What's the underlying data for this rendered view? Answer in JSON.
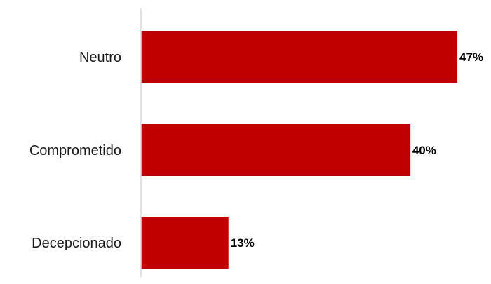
{
  "chart_data": {
    "type": "bar",
    "orientation": "horizontal",
    "categories": [
      "Neutro",
      "Comprometido",
      "Decepcionado"
    ],
    "values": [
      47,
      40,
      13
    ],
    "value_labels": [
      "47%",
      "40%",
      "13%"
    ],
    "title": "",
    "xlabel": "",
    "ylabel": "",
    "xlim": [
      0,
      47
    ],
    "grid": false,
    "legend": "none",
    "bar_color": "#C00000",
    "axis_color": "#D9D9D9"
  }
}
